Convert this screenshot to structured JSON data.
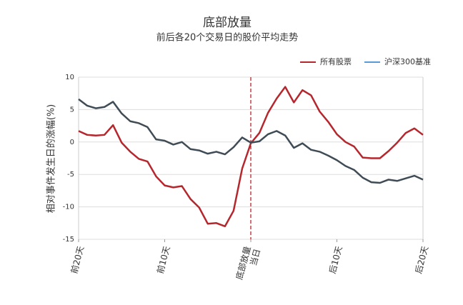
{
  "chart_data": {
    "type": "line",
    "title": "底部放量",
    "subtitle": "前后各20个交易日的股价平均走势",
    "ylabel": "相对事件发生日的涨幅(%)",
    "x": [
      -20,
      -19,
      -18,
      -17,
      -16,
      -15,
      -14,
      -13,
      -12,
      -11,
      -10,
      -9,
      -8,
      -7,
      -6,
      -5,
      -4,
      -3,
      -2,
      -1,
      0,
      1,
      2,
      3,
      4,
      5,
      6,
      7,
      8,
      9,
      10,
      11,
      12,
      13,
      14,
      15,
      16,
      17,
      18,
      19,
      20
    ],
    "xlim": [
      -20,
      20
    ],
    "xticks": [
      {
        "value": -20,
        "label": "前20天"
      },
      {
        "value": -10,
        "label": "前10天"
      },
      {
        "value": 0,
        "label": "底部放量\n当日"
      },
      {
        "value": 10,
        "label": "后10天"
      },
      {
        "value": 20,
        "label": "后20天"
      }
    ],
    "ylim": [
      -15,
      10
    ],
    "yticks": [
      -15,
      -10,
      -5,
      0,
      5,
      10
    ],
    "grid": true,
    "legend": "top-right",
    "vline": {
      "x": 0,
      "color": "#b5272d",
      "dashed": true
    },
    "series": [
      {
        "name": "所有股票",
        "color": "#b5272d",
        "values": [
          1.7,
          1.1,
          1.0,
          1.1,
          2.6,
          -0.1,
          -1.5,
          -2.6,
          -3.0,
          -5.3,
          -6.7,
          -7.0,
          -6.8,
          -8.8,
          -10.1,
          -12.6,
          -12.5,
          -13.0,
          -10.6,
          -4.1,
          -0.2,
          1.4,
          4.5,
          6.7,
          8.5,
          6.1,
          8.0,
          7.2,
          4.7,
          3.1,
          1.2,
          0.0,
          -0.7,
          -2.4,
          -2.5,
          -2.5,
          -1.4,
          -0.1,
          1.4,
          2.1,
          1.1
        ]
      },
      {
        "name": "沪深300基准",
        "color": "#3f4b55",
        "legend_color": "#5b9bd5",
        "values": [
          6.6,
          5.6,
          5.2,
          5.4,
          6.2,
          4.4,
          3.2,
          2.9,
          2.3,
          0.4,
          0.2,
          -0.4,
          0.0,
          -1.1,
          -1.3,
          -1.8,
          -1.5,
          -1.9,
          -0.8,
          0.7,
          -0.1,
          0.1,
          1.2,
          1.7,
          1.0,
          -0.9,
          -0.2,
          -1.2,
          -1.5,
          -2.1,
          -2.8,
          -3.7,
          -4.3,
          -5.5,
          -6.2,
          -6.3,
          -5.8,
          -6.0,
          -5.6,
          -5.2,
          -5.8
        ]
      }
    ]
  }
}
